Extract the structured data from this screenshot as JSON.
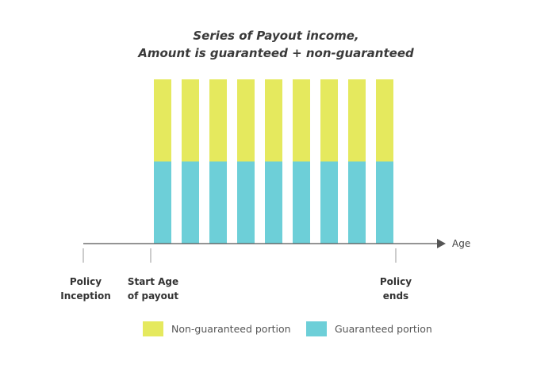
{
  "title": {
    "line1": "Series of Payout income,",
    "line2": "Amount is guaranteed + non-guaranteed"
  },
  "axis": {
    "label": "Age"
  },
  "milestones": [
    {
      "line1": "Policy",
      "line2": "Inception"
    },
    {
      "line1": "Start Age",
      "line2": "of payout"
    },
    {
      "line1": "Policy",
      "line2": "ends"
    }
  ],
  "payouts": {
    "count": 9,
    "guaranteed_share": 0.5,
    "non_guaranteed_share": 0.5
  },
  "legend": {
    "non_guaranteed": "Non-guaranteed portion",
    "guaranteed": "Guaranteed portion"
  },
  "colors": {
    "non_guaranteed": "#e5e95e",
    "guaranteed": "#6dcfd8",
    "axis": "#555555",
    "tick": "#999999"
  }
}
